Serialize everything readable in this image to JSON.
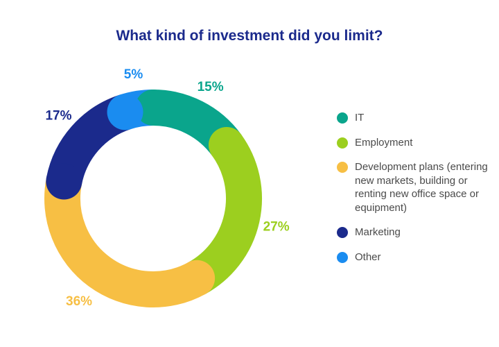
{
  "chart_data": {
    "type": "pie",
    "title": "What kind of investment did you limit?",
    "donut": true,
    "legend_position": "right",
    "slices": [
      {
        "label": "IT",
        "value": 15,
        "display": "15%",
        "color": "#0aa58c"
      },
      {
        "label": "Employment",
        "value": 27,
        "display": "27%",
        "color": "#9ccf1f"
      },
      {
        "label": "Development plans (entering new markets, building or renting new office space or equipment)",
        "value": 36,
        "display": "36%",
        "color": "#f7bf44"
      },
      {
        "label": "Marketing",
        "value": 17,
        "display": "17%",
        "color": "#1b2a8c"
      },
      {
        "label": "Other",
        "value": 5,
        "display": "5%",
        "color": "#1a8cf0"
      }
    ]
  }
}
